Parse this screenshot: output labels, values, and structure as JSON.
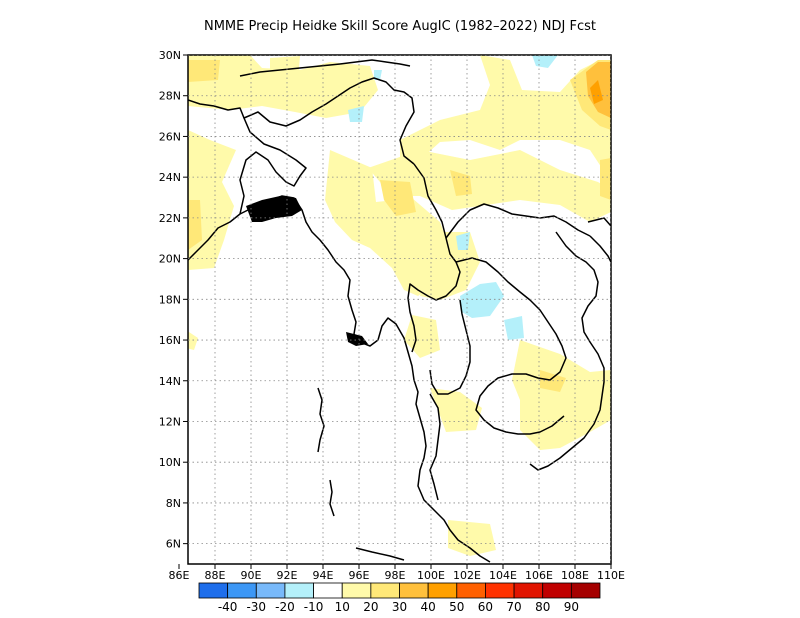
{
  "title": "NMME Precip Heidke Skill Score AugIC (1982–2022) NDJ Fcst",
  "map": {
    "lon_range": [
      86.5,
      110
    ],
    "lat_range": [
      5,
      30
    ],
    "lon_ticks": [
      "86E",
      "88E",
      "90E",
      "92E",
      "94E",
      "96E",
      "98E",
      "100E",
      "102E",
      "104E",
      "106E",
      "108E",
      "110E"
    ],
    "lat_ticks": [
      "6N",
      "8N",
      "10N",
      "12N",
      "14N",
      "16N",
      "18N",
      "20N",
      "22N",
      "24N",
      "26N",
      "28N",
      "30N"
    ],
    "gridlines": "dotted"
  },
  "legend": {
    "labels": [
      "-40",
      "-30",
      "-20",
      "-10",
      "10",
      "20",
      "30",
      "40",
      "50",
      "60",
      "70",
      "80",
      "90"
    ],
    "colors": [
      "#1e6eeb",
      "#3c97f5",
      "#78b9fa",
      "#b4f0fa",
      "#ffffff",
      "#fffaaa",
      "#ffe878",
      "#ffc03c",
      "#ffa000",
      "#ff6000",
      "#ff3200",
      "#e11400",
      "#c00000",
      "#a50000"
    ]
  }
}
